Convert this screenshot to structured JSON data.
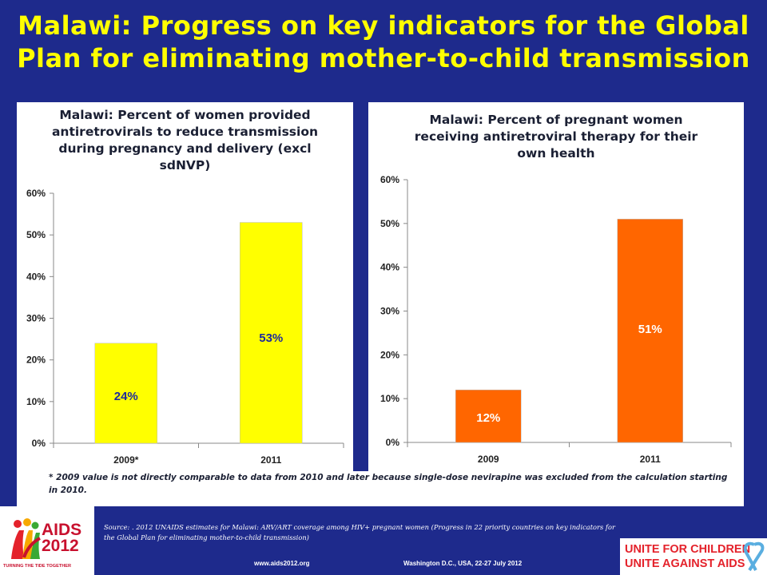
{
  "slide": {
    "title": "Malawi: Progress on key indicators for the Global Plan for eliminating mother-to-child transmission",
    "footnote": "* 2009 value is not directly comparable to data from 2010 and later because single-dose nevirapine was excluded from the calculation starting in 2010.",
    "source": "Source: . 2012 UNAIDS estimates for Malawi: ARV/ART coverage among HIV+ pregnant women (Progress in 22 priority countries on key indicators for the Global Plan for eliminating mother-to-child transmission)",
    "footer_url": "www.aids2012.org",
    "footer_place": "Washington D.C., USA, 22-27 July 2012",
    "logo_text_1": "AIDS",
    "logo_text_2": "2012",
    "logo_tagline": "TURNING THE TIDE TOGETHER",
    "unite_line1": "UNITE FOR CHILDREN",
    "unite_line2": "UNITE AGAINST AIDS"
  },
  "colors": {
    "background": "#1e2a8c",
    "title": "#ffff00",
    "bar_left": "#ffff00",
    "bar_right": "#ff6600",
    "label_left": "#1e2a9c",
    "label_right": "#ffffff"
  },
  "chart_data": [
    {
      "type": "bar",
      "title": "Malawi: Percent of women provided antiretrovirals to reduce transmission during pregnancy and delivery (excl sdNVP)",
      "categories": [
        "2009*",
        "2011"
      ],
      "values": [
        24,
        53
      ],
      "value_labels": [
        "24%",
        "53%"
      ],
      "ylim": [
        0,
        60
      ],
      "yticks": [
        "0%",
        "10%",
        "20%",
        "30%",
        "40%",
        "50%",
        "60%"
      ],
      "grid": false
    },
    {
      "type": "bar",
      "title": "Malawi: Percent of pregnant women receiving antiretroviral therapy for their own health",
      "categories": [
        "2009",
        "2011"
      ],
      "values": [
        12,
        51
      ],
      "value_labels": [
        "12%",
        "51%"
      ],
      "ylim": [
        0,
        60
      ],
      "yticks": [
        "0%",
        "10%",
        "20%",
        "30%",
        "40%",
        "50%",
        "60%"
      ],
      "grid": false
    }
  ]
}
